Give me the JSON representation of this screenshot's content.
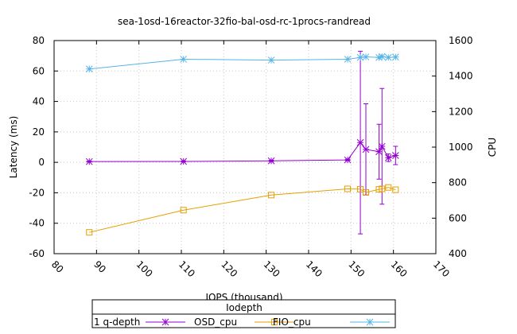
{
  "chart_data": {
    "type": "line",
    "title": "sea-1osd-16reactor-32fio-bal-osd-rc-1procs-randread",
    "xlabel": "IOPS (thousand)",
    "ylabel": "Latency (ms)",
    "y2label": "CPU",
    "xlim": [
      80,
      170
    ],
    "ylim": [
      -60,
      80
    ],
    "y2lim": [
      400,
      1600
    ],
    "x_ticks": [
      "80",
      "90",
      "100",
      "110",
      "120",
      "130",
      "140",
      "150",
      "160",
      "170"
    ],
    "y_ticks": [
      "-60",
      "-40",
      "-20",
      "0",
      "20",
      "40",
      "60",
      "80"
    ],
    "y2_ticks": [
      "400",
      "600",
      "800",
      "1000",
      "1200",
      "1400",
      "1600"
    ],
    "grid": true,
    "legend": {
      "title": "Iodepth",
      "placement": "bottom-center",
      "entries": [
        "1 q-depth",
        "OSD_cpu",
        "FIO_cpu"
      ]
    },
    "series": [
      {
        "name": "1 q-depth",
        "axis": "y",
        "color": "#9400d3",
        "marker": "star",
        "error_bars": true,
        "points": [
          {
            "x": 88.3,
            "y": 0.5,
            "err": 0.3
          },
          {
            "x": 110.5,
            "y": 0.6,
            "err": 0.3
          },
          {
            "x": 131.2,
            "y": 1.0,
            "err": 0.4
          },
          {
            "x": 149.2,
            "y": 1.6,
            "err": 0.5
          },
          {
            "x": 152.2,
            "y": 13.0,
            "err": 60.0
          },
          {
            "x": 153.5,
            "y": 8.5,
            "err": 30.0
          },
          {
            "x": 156.6,
            "y": 7.0,
            "err": 18.0
          },
          {
            "x": 157.3,
            "y": 10.5,
            "err": 38.0
          },
          {
            "x": 158.8,
            "y": 3.0,
            "err": 2.5
          },
          {
            "x": 160.5,
            "y": 4.5,
            "err": 6.0
          }
        ]
      },
      {
        "name": "OSD_cpu",
        "axis": "y2",
        "color": "#e69f00",
        "marker": "square",
        "points": [
          {
            "x": 88.3,
            "y": 520
          },
          {
            "x": 110.5,
            "y": 645
          },
          {
            "x": 131.2,
            "y": 730
          },
          {
            "x": 149.2,
            "y": 765
          },
          {
            "x": 152.2,
            "y": 763
          },
          {
            "x": 153.5,
            "y": 745
          },
          {
            "x": 156.6,
            "y": 762
          },
          {
            "x": 157.3,
            "y": 765
          },
          {
            "x": 158.8,
            "y": 773
          },
          {
            "x": 160.5,
            "y": 760
          }
        ]
      },
      {
        "name": "FIO_cpu",
        "axis": "y2",
        "color": "#56b4e9",
        "marker": "star",
        "points": [
          {
            "x": 88.3,
            "y": 1440
          },
          {
            "x": 110.5,
            "y": 1495
          },
          {
            "x": 131.2,
            "y": 1490
          },
          {
            "x": 149.2,
            "y": 1495
          },
          {
            "x": 152.2,
            "y": 1505
          },
          {
            "x": 153.5,
            "y": 1508
          },
          {
            "x": 156.6,
            "y": 1505
          },
          {
            "x": 157.3,
            "y": 1510
          },
          {
            "x": 158.8,
            "y": 1505
          },
          {
            "x": 160.5,
            "y": 1507
          }
        ]
      }
    ]
  }
}
